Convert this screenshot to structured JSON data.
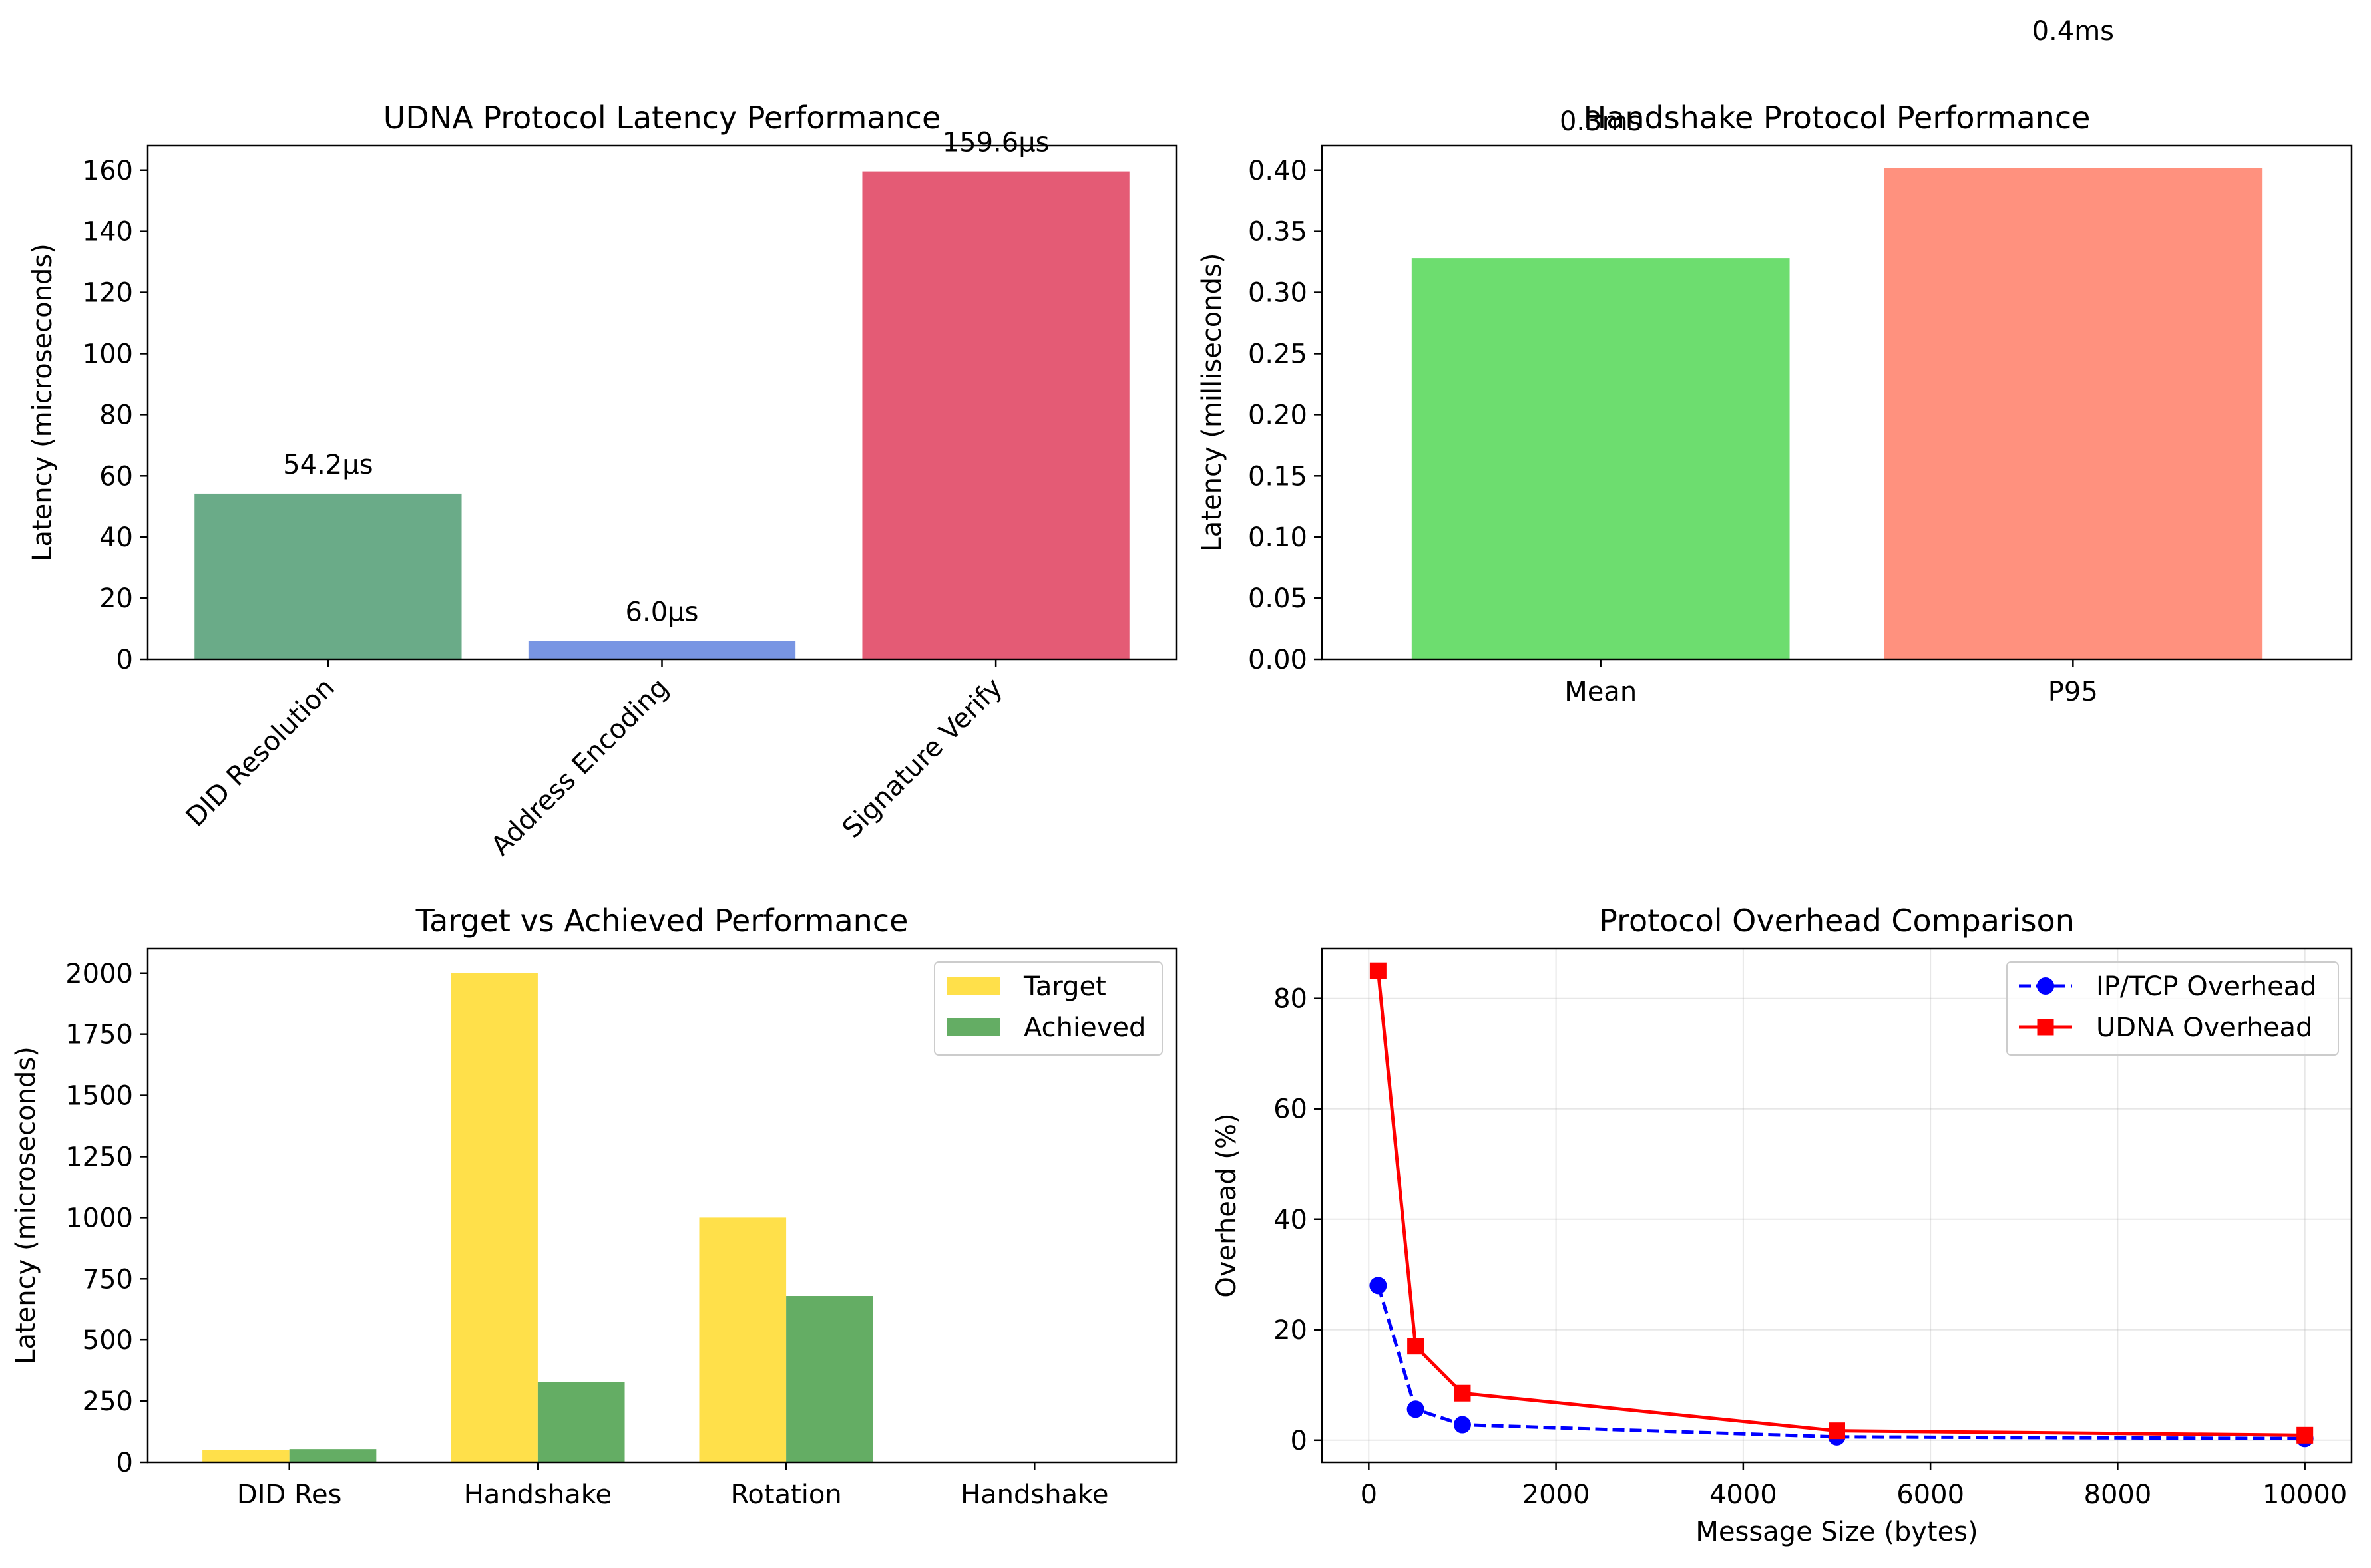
{
  "chart_data": [
    {
      "type": "bar",
      "title": "UDNA Protocol Latency Performance",
      "xlabel": "",
      "ylabel": "Latency (microseconds)",
      "categories": [
        "DID Resolution",
        "Address Encoding",
        "Signature Verify"
      ],
      "values": [
        54.2,
        6.0,
        159.6
      ],
      "data_labels": [
        "54.2μs",
        "6.0μs",
        "159.6μs"
      ],
      "colors": [
        "#6aab88",
        "#7895e3",
        "#e45b75"
      ],
      "ylim": [
        0,
        168
      ],
      "yticks": [
        0,
        20,
        40,
        60,
        80,
        100,
        120,
        140,
        160
      ],
      "grid": false
    },
    {
      "type": "bar",
      "title": "Handshake Protocol Performance",
      "xlabel": "",
      "ylabel": "Latency (milliseconds)",
      "categories": [
        "Mean",
        "P95"
      ],
      "values": [
        0.328,
        0.402
      ],
      "data_labels": [
        "0.3ms",
        "0.4ms"
      ],
      "colors": [
        "#6ddd6f",
        "#ff917e"
      ],
      "ylim": [
        0,
        0.42
      ],
      "yticks": [
        0.0,
        0.05,
        0.1,
        0.15,
        0.2,
        0.25,
        0.3,
        0.35,
        0.4
      ],
      "ytick_labels": [
        "0.00",
        "0.05",
        "0.10",
        "0.15",
        "0.20",
        "0.25",
        "0.30",
        "0.35",
        "0.40"
      ],
      "grid": false
    },
    {
      "type": "bar",
      "title": "Target vs Achieved Performance",
      "xlabel": "",
      "ylabel": "Latency (microseconds)",
      "categories": [
        "DID Res",
        "Handshake",
        "Rotation",
        "Handshake"
      ],
      "series": [
        {
          "name": "Target",
          "values": [
            50,
            2000,
            1000,
            0
          ],
          "color": "#ffe04a"
        },
        {
          "name": "Achieved",
          "values": [
            54,
            328,
            680,
            0
          ],
          "color": "#64ad64"
        }
      ],
      "ylim": [
        0,
        2100
      ],
      "yticks": [
        0,
        250,
        500,
        750,
        1000,
        1250,
        1500,
        1750,
        2000
      ],
      "legend": "top-right",
      "grid": false
    },
    {
      "type": "line",
      "title": "Protocol Overhead Comparison",
      "xlabel": "Message Size (bytes)",
      "ylabel": "Overhead (%)",
      "x": [
        100,
        500,
        1000,
        5000,
        10000
      ],
      "series": [
        {
          "name": "IP/TCP Overhead",
          "values": [
            28,
            5.6,
            2.8,
            0.6,
            0.3
          ],
          "color": "#0000ff",
          "linestyle": "dashed",
          "marker": "circle"
        },
        {
          "name": "UDNA Overhead",
          "values": [
            85,
            17,
            8.5,
            1.7,
            0.9
          ],
          "color": "#ff0000",
          "linestyle": "solid",
          "marker": "square"
        }
      ],
      "xlim": [
        -500,
        10500
      ],
      "ylim": [
        -4,
        89
      ],
      "xticks": [
        0,
        2000,
        4000,
        6000,
        8000,
        10000
      ],
      "yticks": [
        0,
        20,
        40,
        60,
        80
      ],
      "legend": "top-right",
      "grid": true
    }
  ]
}
